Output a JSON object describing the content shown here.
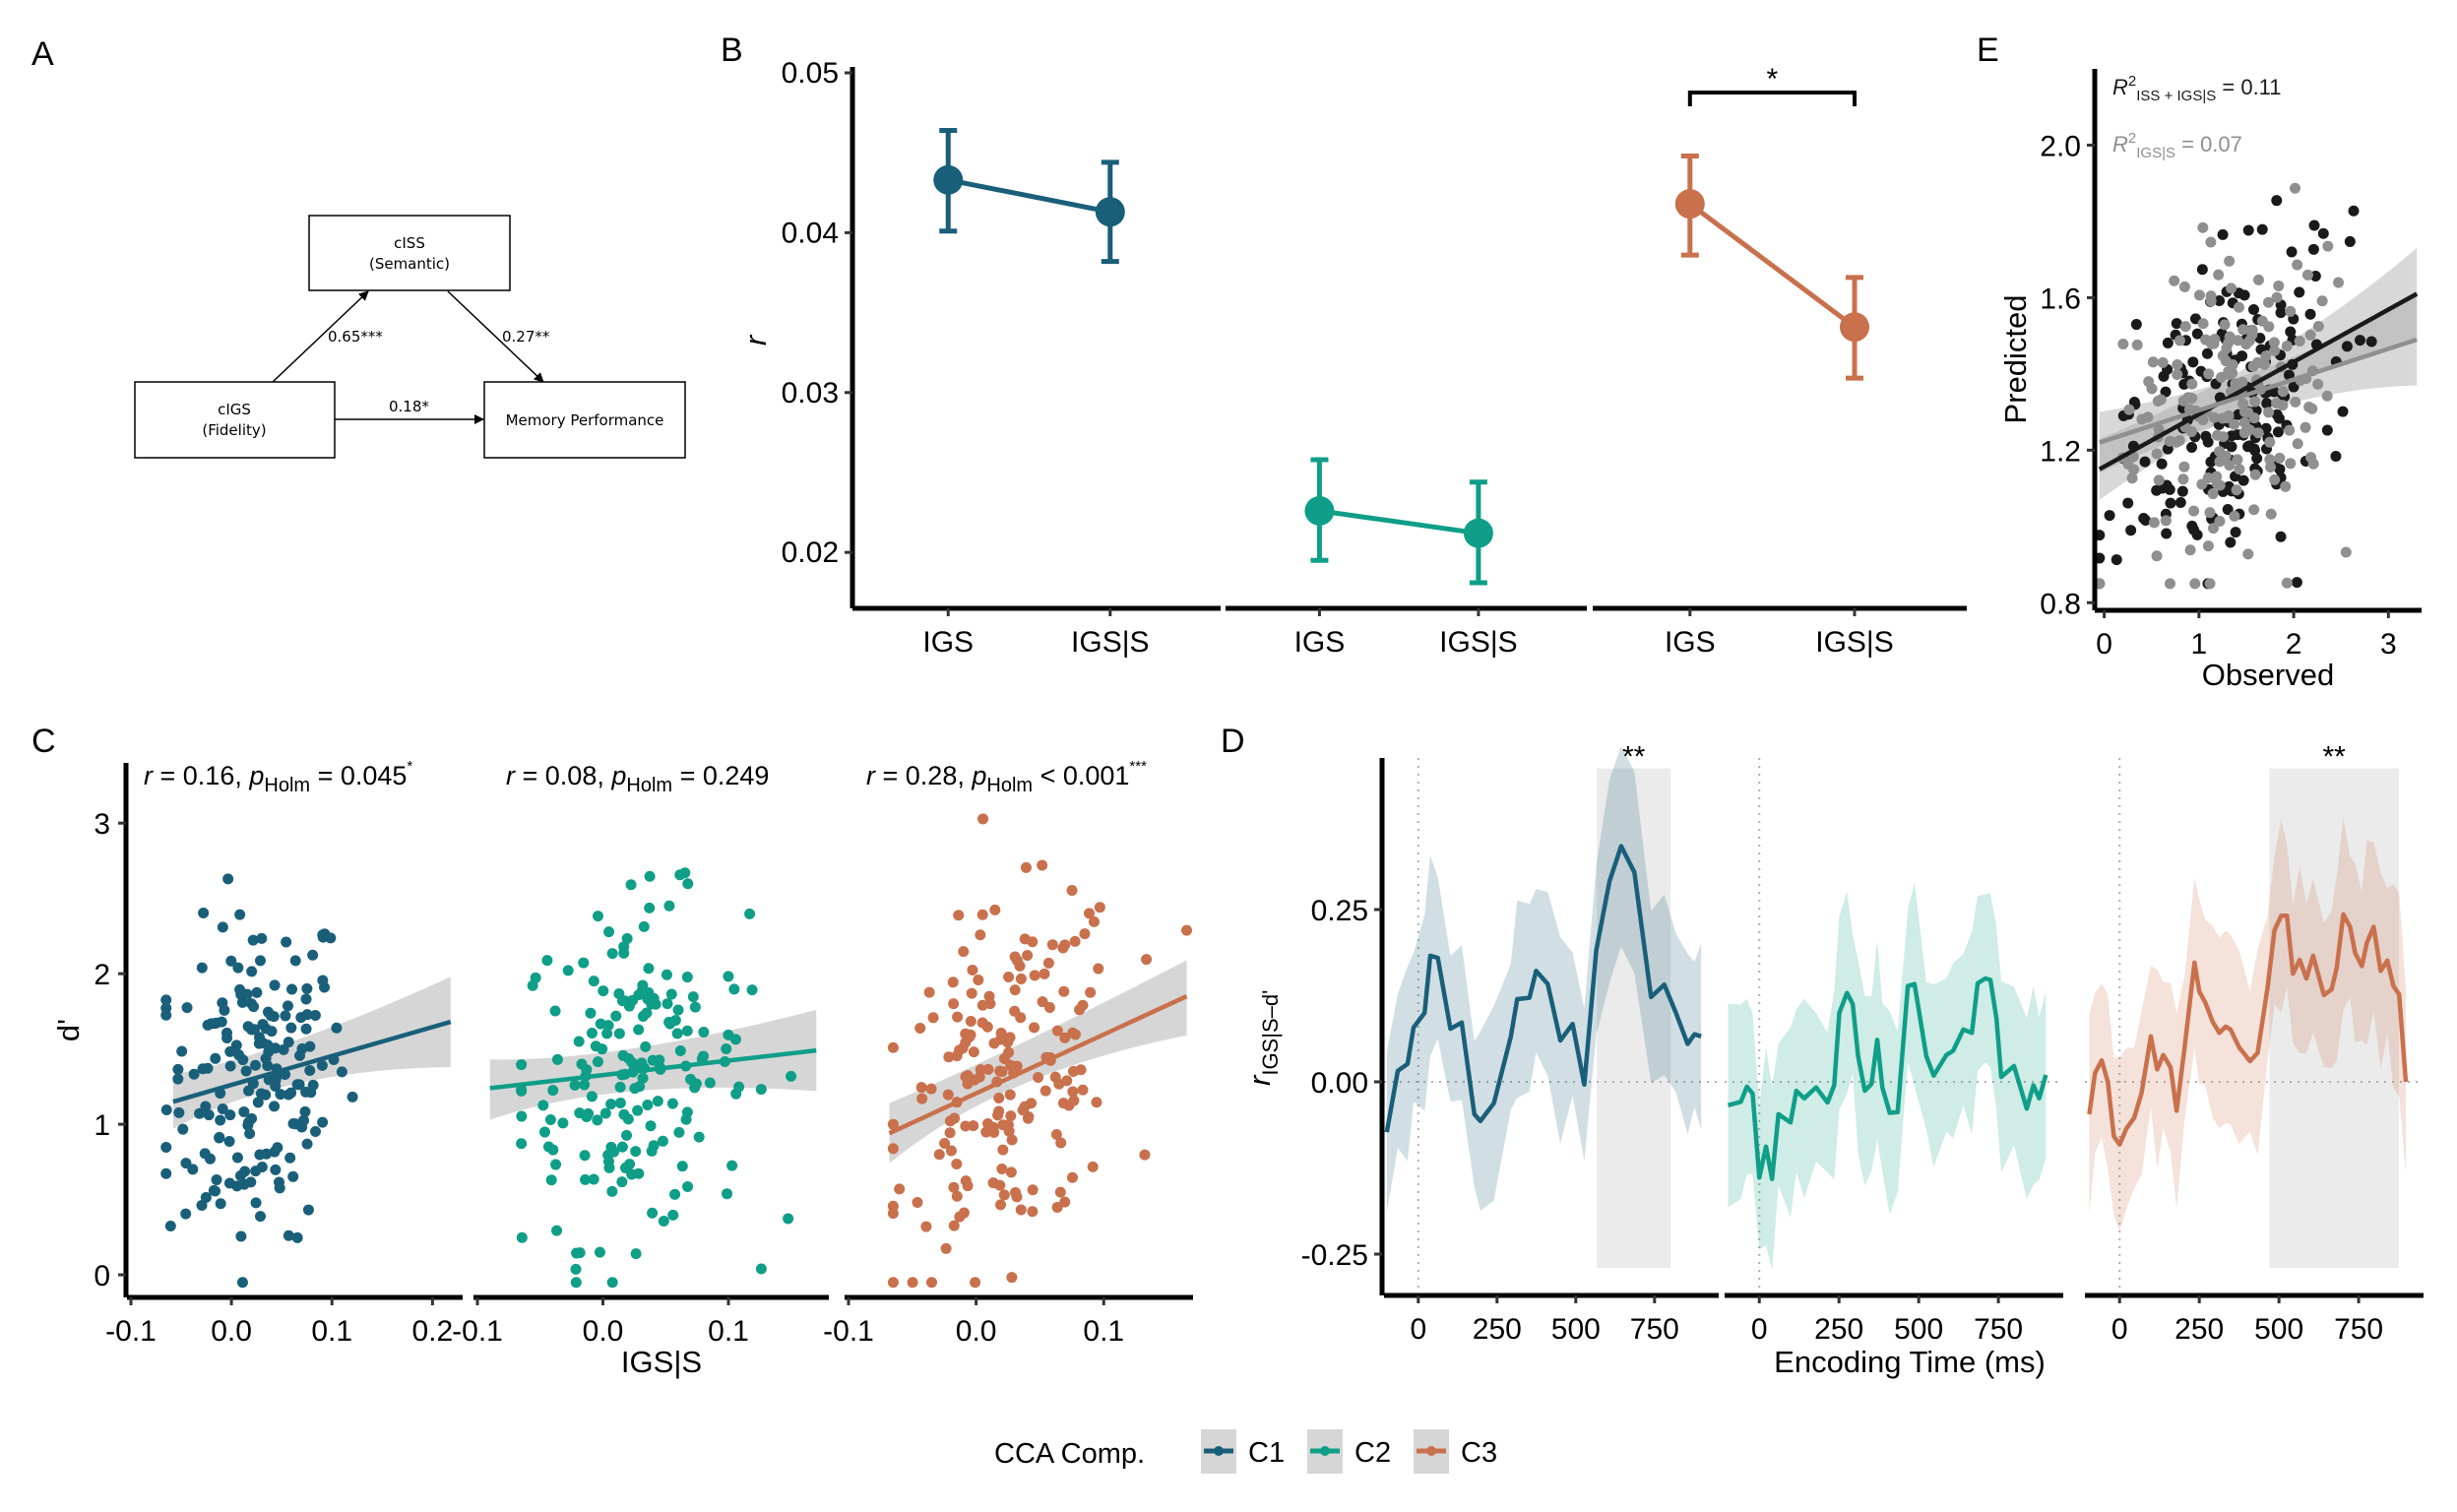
{
  "figure": {
    "panel_labels": [
      "A",
      "B",
      "C",
      "D",
      "E"
    ]
  },
  "colors": {
    "C1": "#1a5f7a",
    "C2": "#0f9e87",
    "C3": "#c9704c",
    "axis": "#000000",
    "sig_window": "#ebebeb",
    "ci_band": "#cfcfcf",
    "E_full_model": "#1a1a1a",
    "E_reduced_model": "#8f8f8f"
  },
  "panel_a": {
    "nodes": {
      "mediator": {
        "line1": "cISS",
        "line2": "(Semantic)"
      },
      "predictor": {
        "line1": "cIGS",
        "line2": "(Fidelity)"
      },
      "outcome": {
        "line1": "Memory Performance"
      }
    },
    "paths": {
      "a": "0.65***",
      "b": "0.27**",
      "c_prime": "0.18*"
    }
  },
  "legend": {
    "title": "CCA Comp.",
    "items": [
      {
        "key": "C1",
        "label": "C1"
      },
      {
        "key": "C2",
        "label": "C2"
      },
      {
        "key": "C3",
        "label": "C3"
      }
    ]
  },
  "chart_data": [
    {
      "panel": "B",
      "type": "scatter",
      "title": "",
      "xlabel": "",
      "ylabel": "r",
      "ylim": [
        0.0165,
        0.05
      ],
      "yticks": [
        0.02,
        0.03,
        0.04,
        0.05
      ],
      "ytick_labels": [
        "0.02",
        "0.03",
        "0.04",
        "0.05"
      ],
      "categories": [
        "IGS",
        "IGS|S"
      ],
      "series": [
        {
          "name": "C1",
          "values": [
            0.0433,
            0.0413
          ],
          "ci_low": [
            0.0401,
            0.0382
          ],
          "ci_high": [
            0.0464,
            0.0444
          ]
        },
        {
          "name": "C2",
          "values": [
            0.0226,
            0.0212
          ],
          "ci_low": [
            0.0195,
            0.0181
          ],
          "ci_high": [
            0.0258,
            0.0244
          ]
        },
        {
          "name": "C3",
          "values": [
            0.0418,
            0.0341
          ],
          "ci_low": [
            0.0386,
            0.0309
          ],
          "ci_high": [
            0.0448,
            0.0372
          ]
        }
      ],
      "annotations": [
        {
          "series": "C3",
          "between": [
            "IGS",
            "IGS|S"
          ],
          "label": "*"
        }
      ]
    },
    {
      "panel": "C",
      "type": "scatter",
      "xlabel": "IGS|S",
      "ylabel": "d'",
      "ylim": [
        -0.15,
        3.4
      ],
      "yticks": [
        0,
        1,
        2,
        3
      ],
      "ytick_labels": [
        "0",
        "1",
        "2",
        "3"
      ],
      "facets": [
        {
          "name": "C1",
          "xlim": [
            -0.1,
            0.23
          ],
          "xticks": [
            -0.1,
            0.0,
            0.1,
            0.2
          ],
          "xtick_labels": [
            "-0.1",
            "0.0",
            "0.1",
            "0.2"
          ],
          "fit": {
            "x": [
              -0.058,
              0.218
            ],
            "y": [
              1.15,
              1.68
            ]
          },
          "ci_low_ends": [
            0.97,
            1.38
          ],
          "ci_high_ends": [
            1.33,
            1.98
          ],
          "stat_r": "0.16",
          "stat_p_op": "=",
          "stat_p": "0.045",
          "stat_sig": "*"
        },
        {
          "name": "C2",
          "xlim": [
            -0.1,
            0.18
          ],
          "xticks": [
            -0.1,
            0.0,
            0.1
          ],
          "xtick_labels": [
            "-0.1",
            "0.0",
            "0.1"
          ],
          "fit": {
            "x": [
              -0.09,
              0.17
            ],
            "y": [
              1.24,
              1.49
            ]
          },
          "ci_low_ends": [
            1.03,
            1.22
          ],
          "ci_high_ends": [
            1.43,
            1.76
          ],
          "stat_r": "0.08",
          "stat_p_op": "=",
          "stat_p": "0.249",
          "stat_sig": ""
        },
        {
          "name": "C3",
          "xlim": [
            -0.1,
            0.17
          ],
          "xticks": [
            -0.1,
            0.0,
            0.1
          ],
          "xtick_labels": [
            "-0.1",
            "0.0",
            "0.1"
          ],
          "fit": {
            "x": [
              -0.068,
              0.165
            ],
            "y": [
              0.94,
              1.85
            ]
          },
          "ci_low_ends": [
            0.74,
            1.59
          ],
          "ci_high_ends": [
            1.14,
            2.09
          ],
          "stat_r": "0.28",
          "stat_p_op": "<",
          "stat_p": "0.001",
          "stat_sig": "***"
        }
      ],
      "points_per_facet_approx": 180,
      "note": "point clouds centered near x≈0.02, d'≈1.3"
    },
    {
      "panel": "D",
      "type": "line",
      "xlabel": "Encoding Time (ms)",
      "ylabel": "r IGS|S–d'",
      "ylabel_main": "r",
      "ylabel_sub": "IGS|S–d'",
      "xlim": [
        -115,
        935
      ],
      "ylim": [
        -0.31,
        0.47
      ],
      "xticks": [
        0,
        250,
        500,
        750
      ],
      "xtick_labels": [
        "0",
        "250",
        "500",
        "750"
      ],
      "yticks": [
        -0.25,
        0.0,
        0.25
      ],
      "ytick_labels": [
        "-0.25",
        "0.00",
        "0.25"
      ],
      "series": [
        {
          "name": "C1",
          "x": [
            -100,
            -65,
            -34,
            -15,
            20,
            38,
            62,
            102,
            138,
            178,
            197,
            240,
            294,
            314,
            353,
            374,
            411,
            451,
            490,
            527,
            565,
            607,
            644,
            686,
            739,
            781,
            818,
            855,
            877,
            898
          ],
          "y": [
            -0.073,
            0.016,
            0.026,
            0.079,
            0.1,
            0.183,
            0.18,
            0.077,
            0.086,
            -0.047,
            -0.057,
            -0.031,
            0.066,
            0.12,
            0.122,
            0.161,
            0.142,
            0.06,
            0.084,
            -0.004,
            0.191,
            0.291,
            0.342,
            0.304,
            0.123,
            0.141,
            0.1,
            0.055,
            0.069,
            0.066
          ],
          "ci_halfwidth": 0.125,
          "sig_window": [
            567,
            801
          ],
          "sig_label": "**"
        },
        {
          "name": "C2",
          "x": [
            -98,
            -58,
            -39,
            -21,
            0,
            21,
            40,
            60,
            98,
            116,
            141,
            178,
            214,
            235,
            251,
            275,
            293,
            310,
            331,
            352,
            370,
            386,
            409,
            434,
            466,
            487,
            524,
            547,
            587,
            608,
            640,
            667,
            685,
            709,
            725,
            744,
            759,
            799,
            839,
            860,
            878,
            899
          ],
          "y": [
            -0.034,
            -0.029,
            -0.007,
            -0.017,
            -0.139,
            -0.094,
            -0.141,
            -0.047,
            -0.059,
            -0.013,
            -0.024,
            -0.008,
            -0.03,
            -0.005,
            0.1,
            0.129,
            0.113,
            0.037,
            -0.013,
            -0.003,
            0.061,
            -0.008,
            -0.045,
            -0.044,
            0.139,
            0.142,
            0.037,
            0.009,
            0.039,
            0.045,
            0.076,
            0.071,
            0.143,
            0.15,
            0.148,
            0.092,
            0.007,
            0.023,
            -0.039,
            -0.005,
            -0.024,
            0.01
          ],
          "ci_halfwidth": 0.125,
          "sig_window": null,
          "sig_label": ""
        },
        {
          "name": "C3",
          "x": [
            -95,
            -77,
            -56,
            -37,
            -18,
            0,
            21,
            46,
            69,
            98,
            118,
            137,
            160,
            179,
            204,
            235,
            250,
            269,
            292,
            313,
            333,
            348,
            375,
            409,
            433,
            464,
            486,
            507,
            525,
            544,
            565,
            586,
            607,
            641,
            665,
            681,
            702,
            723,
            739,
            760,
            776,
            797,
            819,
            840,
            859,
            877,
            898
          ],
          "y": [
            -0.047,
            0.013,
            0.031,
            0.0,
            -0.079,
            -0.091,
            -0.068,
            -0.052,
            -0.016,
            0.066,
            0.018,
            0.039,
            0.021,
            -0.042,
            0.05,
            0.173,
            0.131,
            0.115,
            0.087,
            0.071,
            0.08,
            0.076,
            0.05,
            0.03,
            0.042,
            0.136,
            0.22,
            0.241,
            0.241,
            0.157,
            0.177,
            0.15,
            0.183,
            0.126,
            0.134,
            0.165,
            0.243,
            0.225,
            0.187,
            0.168,
            0.202,
            0.225,
            0.161,
            0.176,
            0.139,
            0.127,
            0.0
          ],
          "ci_halfwidth": 0.125,
          "sig_window": [
            470,
            876
          ],
          "sig_label": "**"
        }
      ]
    },
    {
      "panel": "E",
      "type": "scatter",
      "xlabel": "Observed",
      "ylabel": "Predicted",
      "xlim": [
        -0.1,
        3.35
      ],
      "ylim": [
        0.78,
        2.2
      ],
      "xticks": [
        0,
        1,
        2,
        3
      ],
      "xtick_labels": [
        "0",
        "1",
        "2",
        "3"
      ],
      "yticks": [
        0.8,
        1.2,
        1.6,
        2.0
      ],
      "ytick_labels": [
        "0.8",
        "1.2",
        "1.6",
        "2.0"
      ],
      "series": [
        {
          "name": "ISS + IGS|S",
          "r2_label_sub": "ISS + IGS|S",
          "r2_value": "0.11",
          "fit": {
            "x": [
              -0.05,
              3.3
            ],
            "y": [
              1.15,
              1.61
            ]
          }
        },
        {
          "name": "IGS|S",
          "r2_label_sub": "IGS|S",
          "r2_value": "0.07",
          "fit": {
            "x": [
              -0.05,
              3.3
            ],
            "y": [
              1.22,
              1.49
            ]
          }
        }
      ],
      "points_per_series_approx": 180
    }
  ]
}
